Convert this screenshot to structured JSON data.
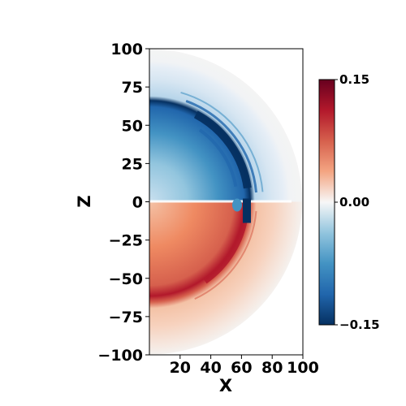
{
  "chart_data": {
    "type": "heatmap",
    "title": "",
    "xlabel": "X",
    "ylabel": "Z",
    "xlim": [
      0,
      100
    ],
    "ylim": [
      -100,
      100
    ],
    "xticks": [
      20,
      40,
      60,
      80,
      100
    ],
    "yticks": [
      100,
      75,
      50,
      25,
      0,
      -25,
      -50,
      -75,
      -100
    ],
    "colormap": "RdBu_r",
    "colorbar": {
      "min": -0.15,
      "max": 0.15,
      "ticks": [
        {
          "value": 0.15,
          "label": "0.15"
        },
        {
          "value": 0.0,
          "label": "0.00"
        },
        {
          "value": -0.15,
          "label": "−0.15"
        }
      ]
    },
    "domain": "half-disk of radius 100, x >= 0",
    "field_description": {
      "upper_half": "negative values (blue)",
      "lower_half": "positive values (red)",
      "strongest_negative_arc_radius": 65,
      "outer_faint_shell_radius": [
        67,
        100
      ]
    },
    "colors": {
      "deep_blue": "#053061",
      "deep_red": "#67001f",
      "neutral": "#f7f7f7"
    }
  }
}
